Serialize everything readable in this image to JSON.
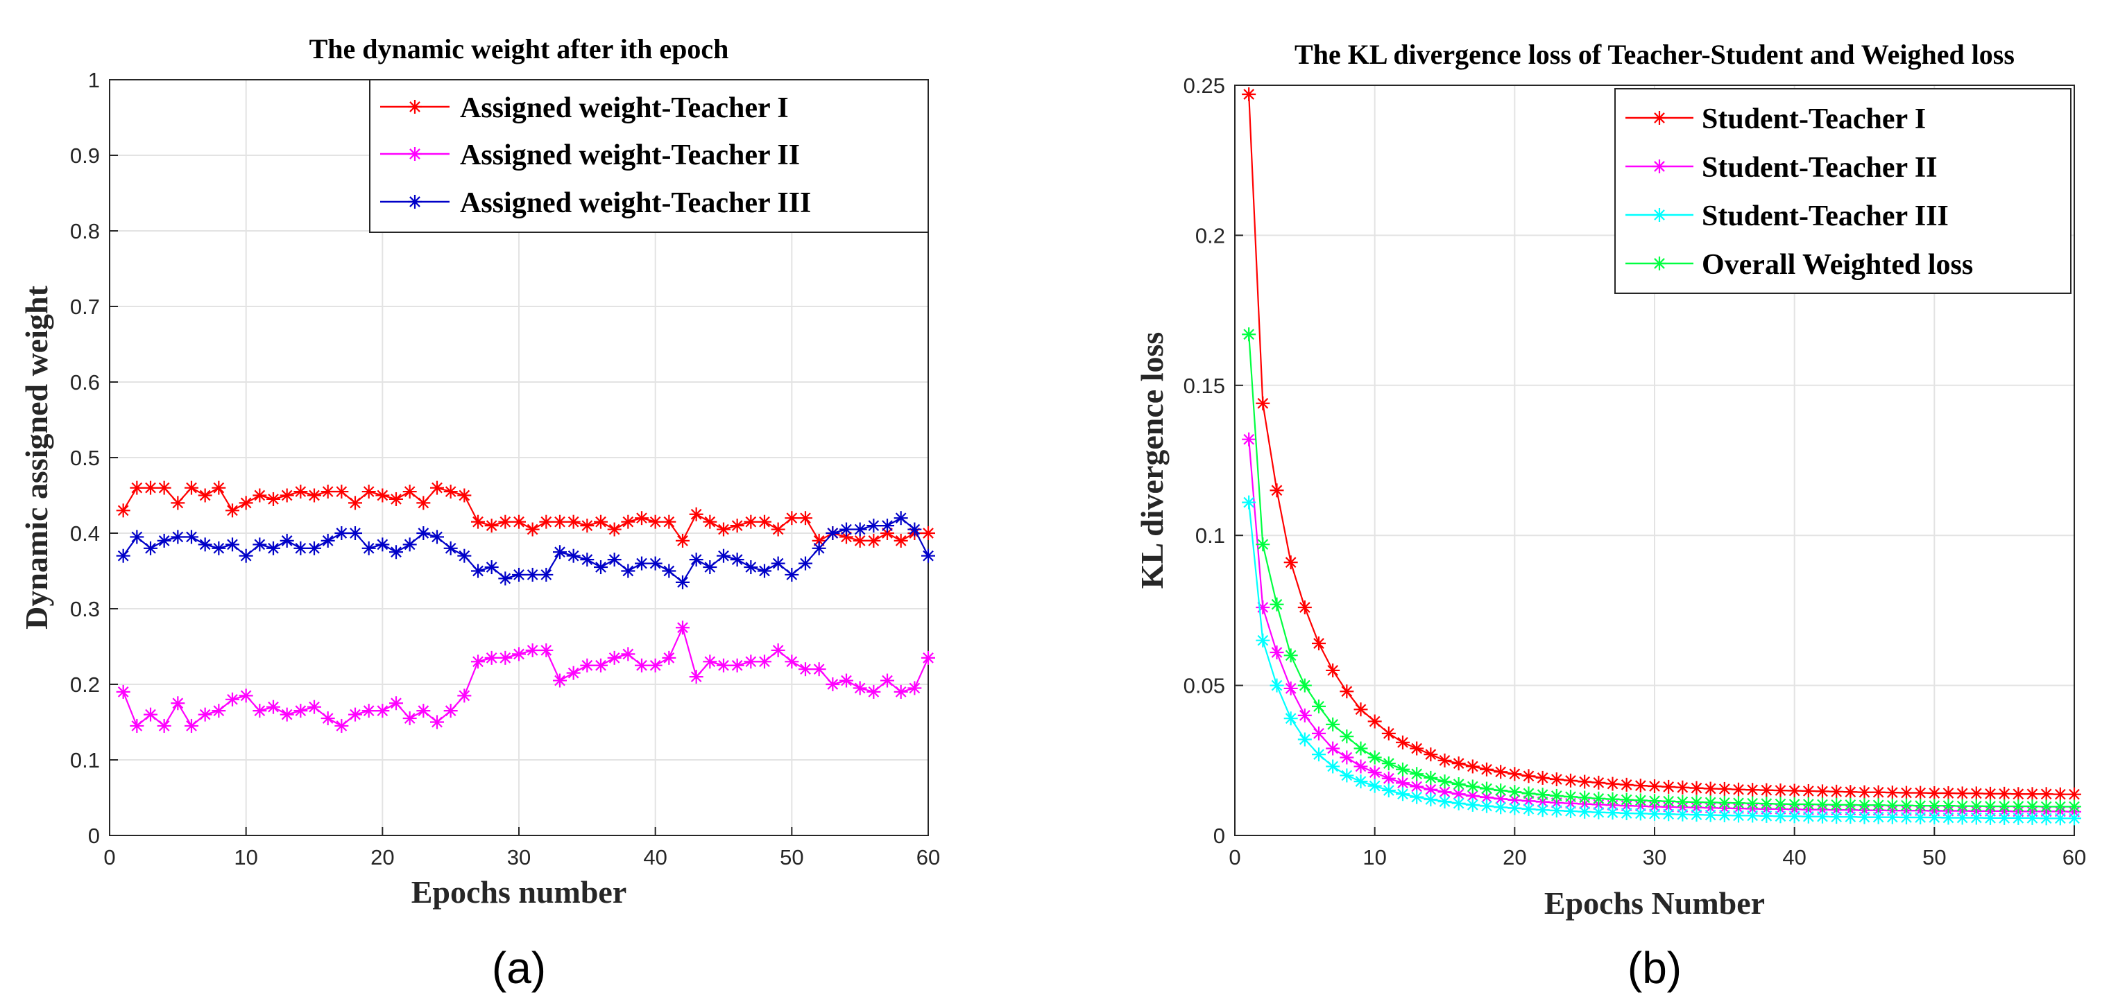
{
  "chart_data": [
    {
      "type": "line",
      "panel_label": "(a)",
      "title": "The dynamic weight after ith epoch",
      "xlabel": "Epochs number",
      "ylabel": "Dynamic assigned weight",
      "xlim": [
        0,
        60
      ],
      "ylim": [
        0,
        1
      ],
      "xticks": [
        0,
        10,
        20,
        30,
        40,
        50,
        60
      ],
      "xtick_labels": [
        "0",
        "10",
        "20",
        "30",
        "40",
        "50",
        "60"
      ],
      "yticks": [
        0,
        0.1,
        0.2,
        0.3,
        0.4,
        0.5,
        0.6,
        0.7,
        0.8,
        0.9,
        1
      ],
      "ytick_labels": [
        "0",
        "0.1",
        "0.2",
        "0.3",
        "0.4",
        "0.5",
        "0.6",
        "0.7",
        "0.8",
        "0.9",
        "1"
      ],
      "grid": true,
      "legend_position": "top-right",
      "x": [
        1,
        2,
        3,
        4,
        5,
        6,
        7,
        8,
        9,
        10,
        11,
        12,
        13,
        14,
        15,
        16,
        17,
        18,
        19,
        20,
        21,
        22,
        23,
        24,
        25,
        26,
        27,
        28,
        29,
        30,
        31,
        32,
        33,
        34,
        35,
        36,
        37,
        38,
        39,
        40,
        41,
        42,
        43,
        44,
        45,
        46,
        47,
        48,
        49,
        50,
        51,
        52,
        53,
        54,
        55,
        56,
        57,
        58,
        59,
        60
      ],
      "series": [
        {
          "name": "Assigned weight-Teacher I",
          "color": "#ff0000",
          "values": [
            0.43,
            0.46,
            0.46,
            0.46,
            0.44,
            0.46,
            0.45,
            0.46,
            0.43,
            0.44,
            0.45,
            0.445,
            0.45,
            0.455,
            0.45,
            0.455,
            0.455,
            0.44,
            0.455,
            0.45,
            0.445,
            0.455,
            0.44,
            0.46,
            0.455,
            0.45,
            0.415,
            0.41,
            0.415,
            0.415,
            0.405,
            0.415,
            0.415,
            0.415,
            0.41,
            0.415,
            0.405,
            0.415,
            0.42,
            0.415,
            0.415,
            0.39,
            0.425,
            0.415,
            0.405,
            0.41,
            0.415,
            0.415,
            0.405,
            0.42,
            0.42,
            0.39,
            0.4,
            0.395,
            0.39,
            0.39,
            0.4,
            0.39,
            0.4,
            0.4
          ]
        },
        {
          "name": "Assigned weight-Teacher II",
          "color": "#ff00ff",
          "values": [
            0.19,
            0.145,
            0.16,
            0.145,
            0.175,
            0.145,
            0.16,
            0.165,
            0.18,
            0.185,
            0.165,
            0.17,
            0.16,
            0.165,
            0.17,
            0.155,
            0.145,
            0.16,
            0.165,
            0.165,
            0.175,
            0.155,
            0.165,
            0.15,
            0.165,
            0.185,
            0.23,
            0.235,
            0.235,
            0.24,
            0.245,
            0.245,
            0.205,
            0.215,
            0.225,
            0.225,
            0.235,
            0.24,
            0.225,
            0.225,
            0.235,
            0.275,
            0.21,
            0.23,
            0.225,
            0.225,
            0.23,
            0.23,
            0.245,
            0.23,
            0.22,
            0.22,
            0.2,
            0.205,
            0.195,
            0.19,
            0.205,
            0.19,
            0.195,
            0.235
          ]
        },
        {
          "name": "Assigned weight-Teacher III",
          "color": "#0000c8",
          "values": [
            0.37,
            0.395,
            0.38,
            0.39,
            0.395,
            0.395,
            0.385,
            0.38,
            0.385,
            0.37,
            0.385,
            0.38,
            0.39,
            0.38,
            0.38,
            0.39,
            0.4,
            0.4,
            0.38,
            0.385,
            0.375,
            0.385,
            0.4,
            0.395,
            0.38,
            0.37,
            0.35,
            0.355,
            0.34,
            0.345,
            0.345,
            0.345,
            0.375,
            0.37,
            0.365,
            0.355,
            0.365,
            0.35,
            0.36,
            0.36,
            0.35,
            0.335,
            0.365,
            0.355,
            0.37,
            0.365,
            0.355,
            0.35,
            0.36,
            0.345,
            0.36,
            0.38,
            0.4,
            0.405,
            0.405,
            0.41,
            0.41,
            0.42,
            0.405,
            0.37
          ]
        }
      ]
    },
    {
      "type": "line",
      "panel_label": "(b)",
      "title": "The KL divergence loss of Teacher-Student and Weighed loss",
      "xlabel": "Epochs Number",
      "ylabel": "KL divergence loss",
      "xlim": [
        0,
        60
      ],
      "ylim": [
        0,
        0.25
      ],
      "xticks": [
        0,
        10,
        20,
        30,
        40,
        50,
        60
      ],
      "xtick_labels": [
        "0",
        "10",
        "20",
        "30",
        "40",
        "50",
        "60"
      ],
      "yticks": [
        0,
        0.05,
        0.1,
        0.15,
        0.2,
        0.25
      ],
      "ytick_labels": [
        "0",
        "0.05",
        "0.1",
        "0.15",
        "0.2",
        "0.25"
      ],
      "grid": true,
      "legend_position": "top-right",
      "x": [
        1,
        2,
        3,
        4,
        5,
        6,
        7,
        8,
        9,
        10,
        11,
        12,
        13,
        14,
        15,
        16,
        17,
        18,
        19,
        20,
        21,
        22,
        23,
        24,
        25,
        26,
        27,
        28,
        29,
        30,
        31,
        32,
        33,
        34,
        35,
        36,
        37,
        38,
        39,
        40,
        41,
        42,
        43,
        44,
        45,
        46,
        47,
        48,
        49,
        50,
        51,
        52,
        53,
        54,
        55,
        56,
        57,
        58,
        59,
        60
      ],
      "series": [
        {
          "name": "Student-Teacher I",
          "color": "#ff0000",
          "values": [
            0.247,
            0.144,
            0.115,
            0.091,
            0.076,
            0.064,
            0.055,
            0.048,
            0.042,
            0.038,
            0.034,
            0.031,
            0.029,
            0.027,
            0.025,
            0.024,
            0.023,
            0.022,
            0.0212,
            0.0205,
            0.0198,
            0.0192,
            0.0187,
            0.0183,
            0.0179,
            0.0176,
            0.0172,
            0.0169,
            0.0166,
            0.0164,
            0.0162,
            0.016,
            0.0158,
            0.0156,
            0.0155,
            0.0153,
            0.0152,
            0.0151,
            0.015,
            0.0149,
            0.0148,
            0.0147,
            0.0146,
            0.0145,
            0.0144,
            0.0144,
            0.0143,
            0.0142,
            0.0142,
            0.0141,
            0.0141,
            0.014,
            0.014,
            0.0139,
            0.0139,
            0.0138,
            0.0138,
            0.0138,
            0.0137,
            0.0137
          ]
        },
        {
          "name": "Student-Teacher II",
          "color": "#ff00ff",
          "values": [
            0.132,
            0.076,
            0.061,
            0.049,
            0.04,
            0.034,
            0.029,
            0.026,
            0.023,
            0.021,
            0.019,
            0.0175,
            0.0163,
            0.0153,
            0.0145,
            0.0138,
            0.0132,
            0.0127,
            0.0122,
            0.0118,
            0.0115,
            0.0112,
            0.0109,
            0.0107,
            0.0105,
            0.0103,
            0.0101,
            0.0099,
            0.0098,
            0.0096,
            0.0095,
            0.0094,
            0.0093,
            0.0092,
            0.0091,
            0.009,
            0.0089,
            0.0088,
            0.0088,
            0.0087,
            0.0086,
            0.0086,
            0.0085,
            0.0085,
            0.0084,
            0.0084,
            0.0083,
            0.0083,
            0.0083,
            0.0082,
            0.0082,
            0.0082,
            0.0081,
            0.0081,
            0.0081,
            0.008,
            0.008,
            0.008,
            0.008,
            0.0079
          ]
        },
        {
          "name": "Student-Teacher III",
          "color": "#00ffff",
          "values": [
            0.111,
            0.065,
            0.05,
            0.039,
            0.032,
            0.027,
            0.023,
            0.02,
            0.018,
            0.0165,
            0.015,
            0.0138,
            0.0128,
            0.012,
            0.0113,
            0.0107,
            0.0102,
            0.0098,
            0.0094,
            0.0091,
            0.0088,
            0.0085,
            0.0083,
            0.0081,
            0.0079,
            0.0077,
            0.0076,
            0.0074,
            0.0073,
            0.0072,
            0.0071,
            0.007,
            0.0069,
            0.0068,
            0.0067,
            0.0066,
            0.0066,
            0.0065,
            0.0064,
            0.0064,
            0.0063,
            0.0063,
            0.0062,
            0.0062,
            0.0061,
            0.0061,
            0.0061,
            0.006,
            0.006,
            0.006,
            0.0059,
            0.0059,
            0.0059,
            0.0058,
            0.0058,
            0.0058,
            0.0058,
            0.0057,
            0.0057,
            0.0057
          ]
        },
        {
          "name": "Overall Weighted loss",
          "color": "#00ff40",
          "values": [
            0.167,
            0.097,
            0.077,
            0.06,
            0.05,
            0.043,
            0.037,
            0.033,
            0.029,
            0.026,
            0.024,
            0.022,
            0.0205,
            0.0192,
            0.018,
            0.0171,
            0.0163,
            0.0156,
            0.015,
            0.0145,
            0.014,
            0.0136,
            0.0132,
            0.0129,
            0.0126,
            0.0123,
            0.0121,
            0.0119,
            0.0117,
            0.0115,
            0.0114,
            0.0112,
            0.0111,
            0.011,
            0.0109,
            0.0108,
            0.0107,
            0.0106,
            0.0105,
            0.0104,
            0.0104,
            0.0103,
            0.0102,
            0.0102,
            0.0101,
            0.0101,
            0.01,
            0.01,
            0.0099,
            0.0099,
            0.0099,
            0.0098,
            0.0098,
            0.0097,
            0.0097,
            0.0097,
            0.0097,
            0.0096,
            0.0096,
            0.0096
          ]
        }
      ]
    }
  ]
}
